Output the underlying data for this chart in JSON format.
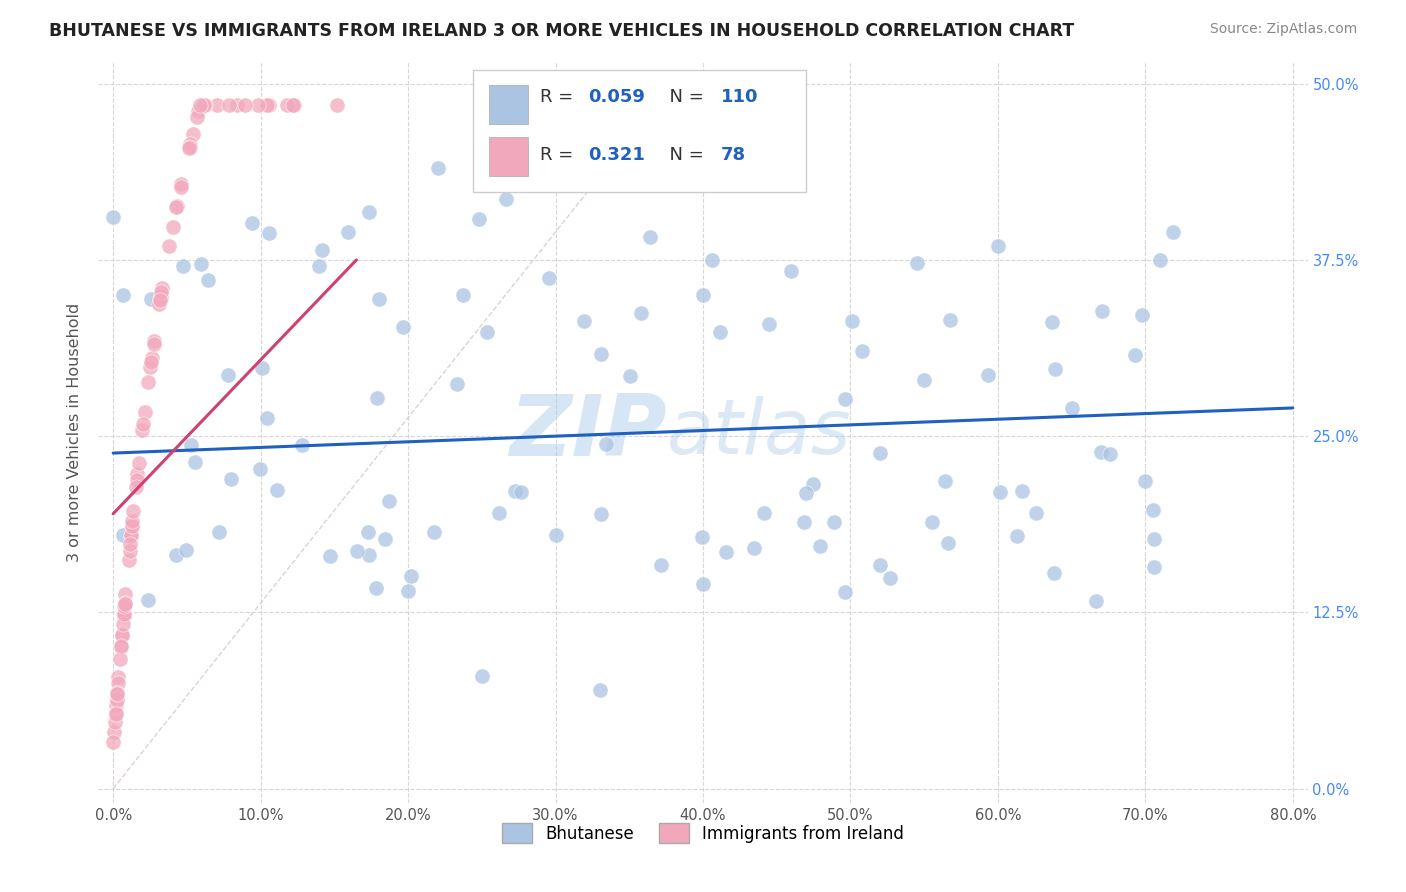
{
  "title": "BHUTANESE VS IMMIGRANTS FROM IRELAND 3 OR MORE VEHICLES IN HOUSEHOLD CORRELATION CHART",
  "source_text": "Source: ZipAtlas.com",
  "ylabel": "3 or more Vehicles in Household",
  "xlim": [
    -0.005,
    0.805
  ],
  "ylim": [
    -0.005,
    0.505
  ],
  "xticks": [
    0.0,
    0.1,
    0.2,
    0.3,
    0.4,
    0.5,
    0.6,
    0.7,
    0.8
  ],
  "xticklabels": [
    "0.0%",
    "10.0%",
    "20.0%",
    "30.0%",
    "40.0%",
    "50.0%",
    "60.0%",
    "70.0%",
    "80.0%"
  ],
  "yticks": [
    0.0,
    0.125,
    0.25,
    0.375,
    0.5
  ],
  "yticklabels": [
    "0.0%",
    "12.5%",
    "25.0%",
    "37.5%",
    "50.0%"
  ],
  "blue_R": 0.059,
  "blue_N": 110,
  "pink_R": 0.321,
  "pink_N": 78,
  "blue_dot_color": "#aac4e2",
  "pink_dot_color": "#f2a8bc",
  "blue_line_color": "#2060c0",
  "pink_line_color": "#d04070",
  "legend_label_blue": "Bhutanese",
  "legend_label_pink": "Immigrants from Ireland",
  "background_color": "#ffffff",
  "grid_color": "#cccccc",
  "watermark_zip": "ZIP",
  "watermark_atlas": "atlas",
  "title_color": "#222222",
  "ylabel_color": "#555555",
  "ytick_color": "#4488ff",
  "xtick_color": "#555555",
  "source_color": "#888888",
  "blue_line_start_y": 0.238,
  "blue_line_end_y": 0.27,
  "pink_line_start_x": 0.0,
  "pink_line_start_y": 0.195,
  "pink_line_end_x": 0.165,
  "pink_line_end_y": 0.375,
  "diag_line_color": "#ddcccc",
  "diag_line_end_x": 0.38,
  "diag_line_end_y": 0.5
}
